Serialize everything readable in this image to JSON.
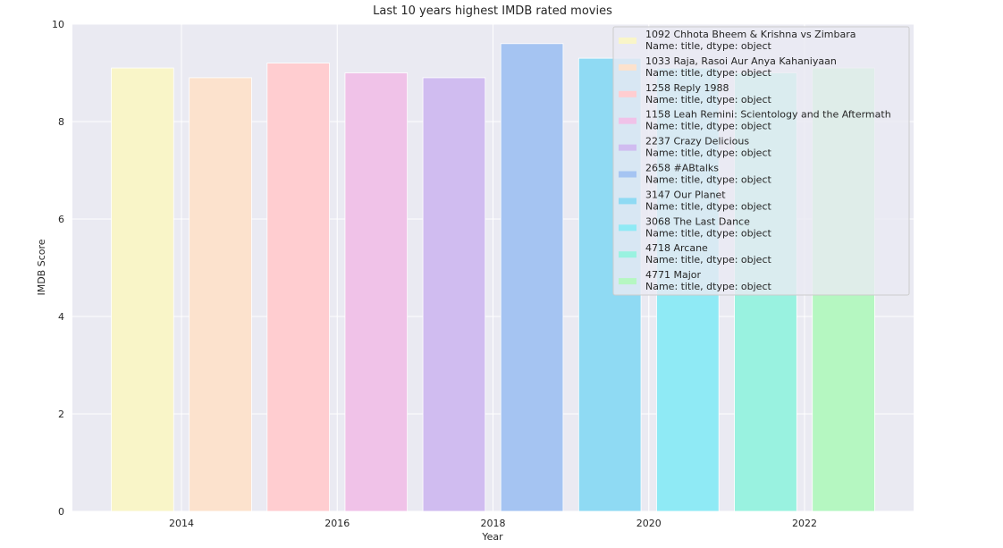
{
  "chart_data": {
    "type": "bar",
    "title": "Last 10 years highest IMDB rated movies",
    "xlabel": "Year",
    "ylabel": "IMDB Score",
    "xlim": [
      2012.6,
      2023.4
    ],
    "ylim": [
      0,
      10
    ],
    "xticks": [
      2014,
      2016,
      2018,
      2020,
      2022
    ],
    "yticks": [
      0,
      2,
      4,
      6,
      8,
      10
    ],
    "grid": true,
    "legend_placement": "top-right",
    "x": [
      2013.5,
      2014.5,
      2015.5,
      2016.5,
      2017.5,
      2018.5,
      2019.5,
      2020.5,
      2021.5,
      2022.5
    ],
    "values": [
      9.1,
      8.9,
      9.2,
      9.0,
      8.9,
      9.6,
      9.3,
      9.1,
      9.0,
      9.1
    ],
    "colors": [
      "#f9f5c8",
      "#fce2cd",
      "#ffcdd0",
      "#f0c2e8",
      "#d0bcf0",
      "#a5c4f2",
      "#8fdaf3",
      "#8feaf5",
      "#99f2e0",
      "#b5f7c1"
    ],
    "series": [
      {
        "line1": "1092    Chhota Bheem & Krishna vs Zimbara",
        "line2": "Name: title, dtype: object"
      },
      {
        "line1": "1033    Raja, Rasoi Aur Anya Kahaniyaan",
        "line2": "Name: title, dtype: object"
      },
      {
        "line1": "1258    Reply 1988",
        "line2": "Name: title, dtype: object"
      },
      {
        "line1": "1158    Leah Remini: Scientology and the Aftermath",
        "line2": "Name: title, dtype: object"
      },
      {
        "line1": "2237    Crazy Delicious",
        "line2": "Name: title, dtype: object"
      },
      {
        "line1": "2658    #ABtalks",
        "line2": "Name: title, dtype: object"
      },
      {
        "line1": "3147    Our Planet",
        "line2": "Name: title, dtype: object"
      },
      {
        "line1": "3068    The Last Dance",
        "line2": "Name: title, dtype: object"
      },
      {
        "line1": "4718    Arcane",
        "line2": "Name: title, dtype: object"
      },
      {
        "line1": "4771    Major",
        "line2": "Name: title, dtype: object"
      }
    ]
  }
}
